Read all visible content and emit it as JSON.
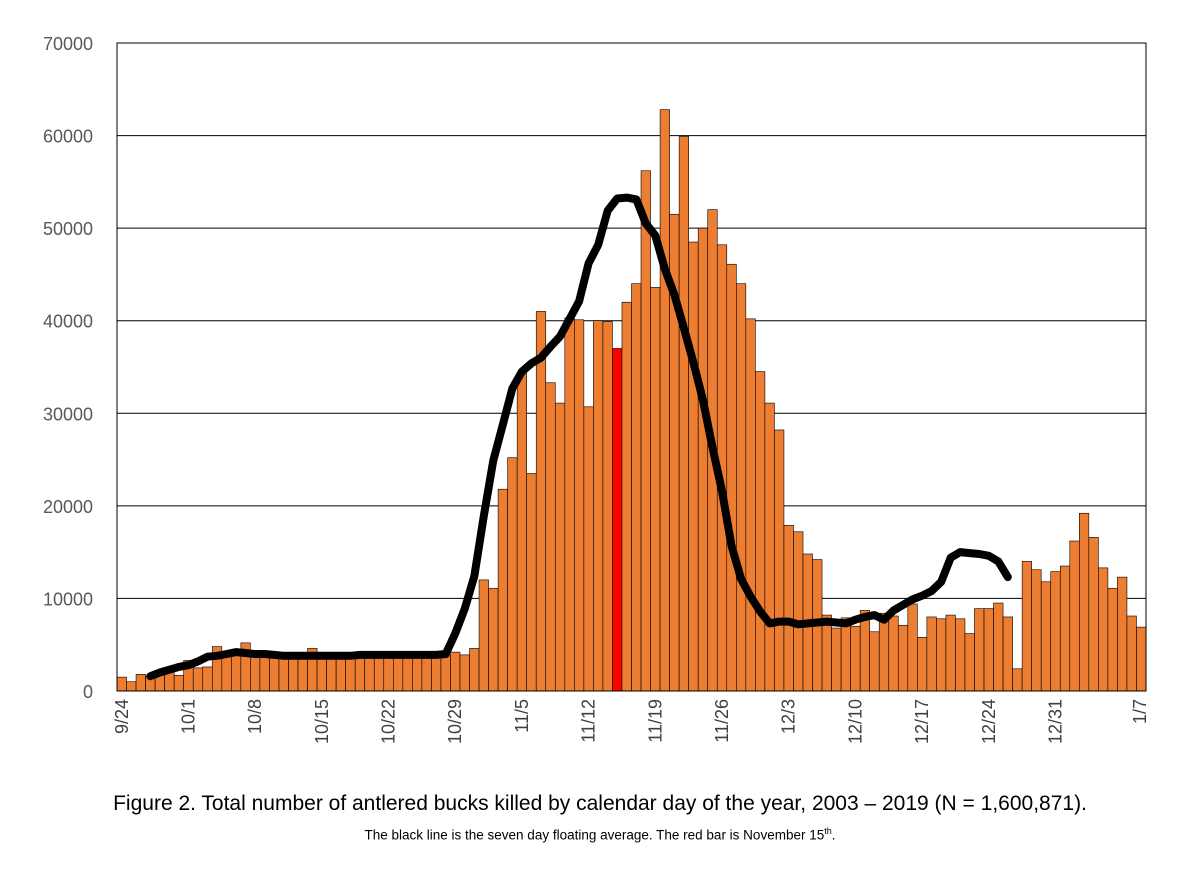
{
  "chart_data": {
    "type": "bar",
    "ylim": [
      0,
      70000
    ],
    "y_ticks": [
      0,
      10000,
      20000,
      30000,
      40000,
      50000,
      60000,
      70000
    ],
    "grid": true,
    "x_start_label": "9/24",
    "x_tick_labels": [
      "9/24",
      "10/1",
      "10/8",
      "10/15",
      "10/22",
      "10/29",
      "11/5",
      "11/12",
      "11/19",
      "11/26",
      "12/3",
      "12/10",
      "12/17",
      "12/24",
      "12/31",
      "1/7"
    ],
    "highlight_label": "11/15",
    "colors": {
      "bar": "#ED7D31",
      "highlight": "#FF0000",
      "average_line": "#000000",
      "bar_outline": "#000000"
    },
    "series": [
      {
        "values": [
          1500,
          1000,
          1800,
          1600,
          1900,
          2500,
          1700,
          3300,
          2500,
          2600,
          4800,
          3900,
          4000,
          5200,
          4300,
          4000,
          3800,
          3800,
          3700,
          3800,
          4600,
          3900,
          3900,
          3900,
          3900,
          3900,
          3900,
          3800,
          4000,
          3900,
          4000,
          3900,
          3800,
          3900,
          3800,
          4200,
          3900,
          4600,
          12000,
          11100,
          21800,
          25200,
          34300,
          23500,
          41000,
          33300,
          31100,
          40300,
          40100,
          30700,
          40000,
          39900,
          37000,
          42000,
          44000,
          56200,
          43600,
          62800,
          51500,
          59900,
          48500,
          50000,
          52000,
          48200,
          46100,
          44000,
          40200,
          34500,
          31100,
          28200,
          17900,
          17200,
          14800,
          14200,
          8200,
          6800,
          7900,
          7000,
          8700,
          6400,
          8400,
          8100,
          7100,
          9400,
          5800,
          8000,
          7800,
          8200,
          7800,
          6200,
          8900,
          8900,
          9500,
          8000,
          2400,
          14000,
          13100,
          11800,
          12900,
          13500,
          16200,
          19200,
          16600,
          13300,
          11100,
          12300,
          8100,
          6900
        ],
        "highlight_index": 52
      },
      {
        "values": [
          null,
          null,
          null,
          1600,
          2000,
          2300,
          2600,
          2800,
          3200,
          3700,
          3800,
          4000,
          4200,
          4100,
          4000,
          4000,
          3900,
          3800,
          3800,
          3800,
          3800,
          3800,
          3800,
          3800,
          3800,
          3900,
          3900,
          3900,
          3900,
          3900,
          3900,
          3900,
          3900,
          3900,
          4000,
          6200,
          8900,
          12400,
          18900,
          24900,
          28800,
          32700,
          34500,
          35400,
          36000,
          37200,
          38300,
          40200,
          42100,
          46200,
          48200,
          51900,
          53200,
          53300,
          53100,
          50500,
          49200,
          45600,
          42800,
          39200,
          35500,
          31400,
          26300,
          21600,
          15700,
          12100,
          10200,
          8600,
          7300,
          7500,
          7500,
          7200,
          7300,
          7400,
          7500,
          7400,
          7300,
          7700,
          8000,
          8200,
          7700,
          8700,
          9300,
          9900,
          10300,
          10800,
          11800,
          14400,
          15000,
          14900,
          14800,
          14600,
          14000,
          12300
        ],
        "offset": 3
      }
    ]
  },
  "caption": {
    "main": "Figure 2.  Total number of antlered bucks killed by calendar day of the year, 2003 – 2019 (N = 1,600,871).",
    "sub": "The black line is the seven day floating average.  The  red bar is November 15",
    "sub_sup": "th",
    "sub_end": "."
  }
}
